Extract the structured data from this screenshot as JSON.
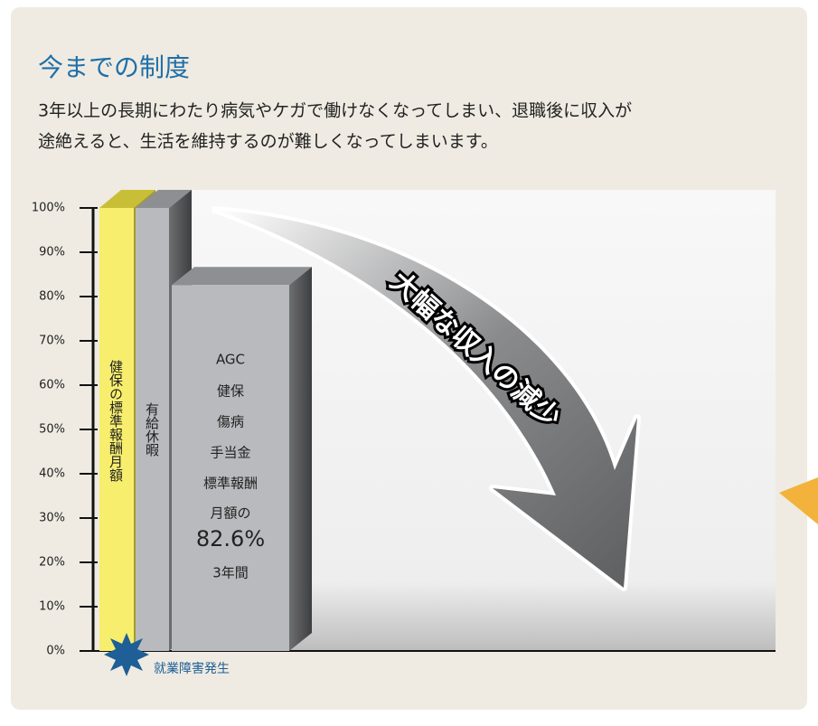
{
  "header": {
    "title": "今までの制度",
    "description": [
      "3年以上の長期にわたり病気やケガで働けなくなってしまい、退職後に収入が",
      "途絶えると、生活を維持するのが難しくなってしまいます。"
    ]
  },
  "chart_data": {
    "type": "bar",
    "bar_labels": [
      [
        "健保の標準報酬月額"
      ],
      [
        "有給休暇"
      ],
      [
        "AGC",
        "健保",
        "傷病",
        "手当金",
        "標準報酬",
        "月額の"
      ]
    ],
    "values": [
      100,
      100,
      82.6
    ],
    "value_labels": [
      null,
      null,
      "82.6%"
    ],
    "durations": [
      null,
      null,
      "3年間"
    ],
    "colors": [
      "#f7ee6e",
      "#b9babd",
      "#b9babd"
    ],
    "ylim": [
      0,
      100
    ],
    "yticks": [
      {
        "value": 0,
        "label": "0%"
      },
      {
        "value": 10,
        "label": "10%"
      },
      {
        "value": 20,
        "label": "20%"
      },
      {
        "value": 30,
        "label": "30%"
      },
      {
        "value": 40,
        "label": "40%"
      },
      {
        "value": 50,
        "label": "50%"
      },
      {
        "value": 60,
        "label": "60%"
      },
      {
        "value": 70,
        "label": "70%"
      },
      {
        "value": 80,
        "label": "80%"
      },
      {
        "value": 90,
        "label": "90%"
      },
      {
        "value": 100,
        "label": "100%"
      }
    ],
    "arrow_text": "大幅な収入の減少",
    "event_label": "就業障害発生"
  }
}
